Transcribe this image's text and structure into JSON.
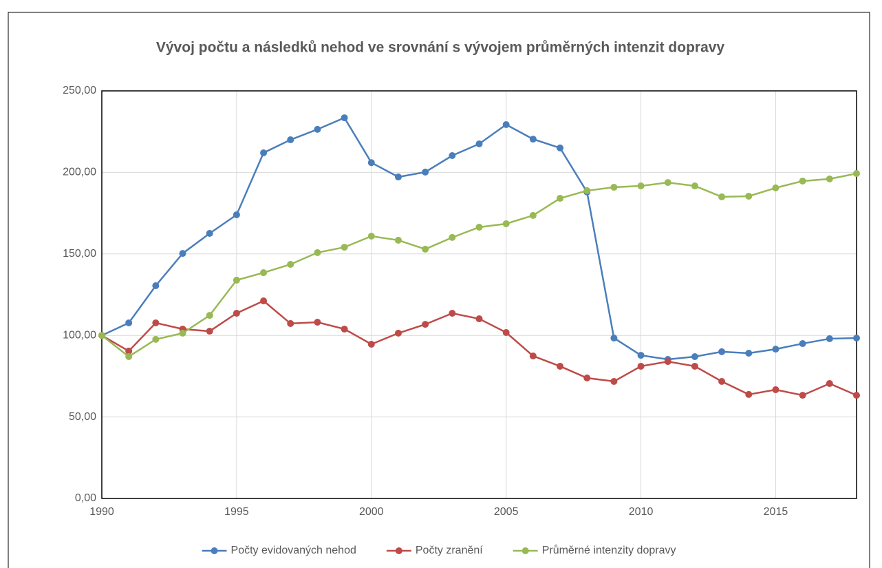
{
  "chart_data": {
    "type": "line",
    "title": "Vývoj počtu a následků nehod ve srovnání s vývojem průměrných intenzit dopravy",
    "x": [
      1990,
      1991,
      1992,
      1993,
      1994,
      1995,
      1996,
      1997,
      1998,
      1999,
      2000,
      2001,
      2002,
      2003,
      2004,
      2005,
      2006,
      2007,
      2008,
      2009,
      2010,
      2011,
      2012,
      2013,
      2014,
      2015,
      2016,
      2017,
      2018
    ],
    "series": [
      {
        "name": "Počty evidovaných nehod",
        "color": "#4a7ebb",
        "values": [
          100,
          107.7,
          130.5,
          150.3,
          162.6,
          174,
          212,
          220,
          226.4,
          233.5,
          206,
          197.2,
          200.2,
          210.3,
          217.5,
          229.3,
          220.4,
          215,
          188,
          98.4,
          87.8,
          85.3,
          87,
          90,
          89.1,
          91.6,
          95,
          98,
          98.4
        ]
      },
      {
        "name": "Počty zranění",
        "color": "#be4b48",
        "values": [
          100,
          90.4,
          107.7,
          103.9,
          102.6,
          113.6,
          121.2,
          107.3,
          108.1,
          103.9,
          94.6,
          101.4,
          106.8,
          113.6,
          110.2,
          101.8,
          87.4,
          81.1,
          73.9,
          71.8,
          81.1,
          84,
          81.1,
          71.8,
          63.8,
          66.7,
          63.3,
          70.5,
          63.3
        ]
      },
      {
        "name": "Průměrné intenzity dopravy",
        "color": "#98b954",
        "values": [
          100,
          87,
          97.6,
          101.4,
          112.3,
          133.9,
          138.5,
          143.6,
          150.8,
          154.1,
          160.9,
          158.4,
          152.9,
          160.1,
          166.4,
          168.5,
          173.6,
          184.1,
          188.8,
          190.9,
          191.7,
          193.8,
          191.7,
          185,
          185.4,
          190.5,
          194.7,
          196,
          199.3
        ]
      }
    ],
    "xlim": [
      1990,
      2018
    ],
    "xticks": [
      1990,
      1995,
      2000,
      2005,
      2010,
      2015
    ],
    "ylim": [
      0,
      250
    ],
    "yticks": [
      {
        "value": 0,
        "label": "0,00"
      },
      {
        "value": 50,
        "label": "50,00"
      },
      {
        "value": 100,
        "label": "100,00"
      },
      {
        "value": 150,
        "label": "150,00"
      },
      {
        "value": 200,
        "label": "200,00"
      },
      {
        "value": 250,
        "label": "250,00"
      }
    ],
    "grid": true,
    "legend": "bottom"
  }
}
